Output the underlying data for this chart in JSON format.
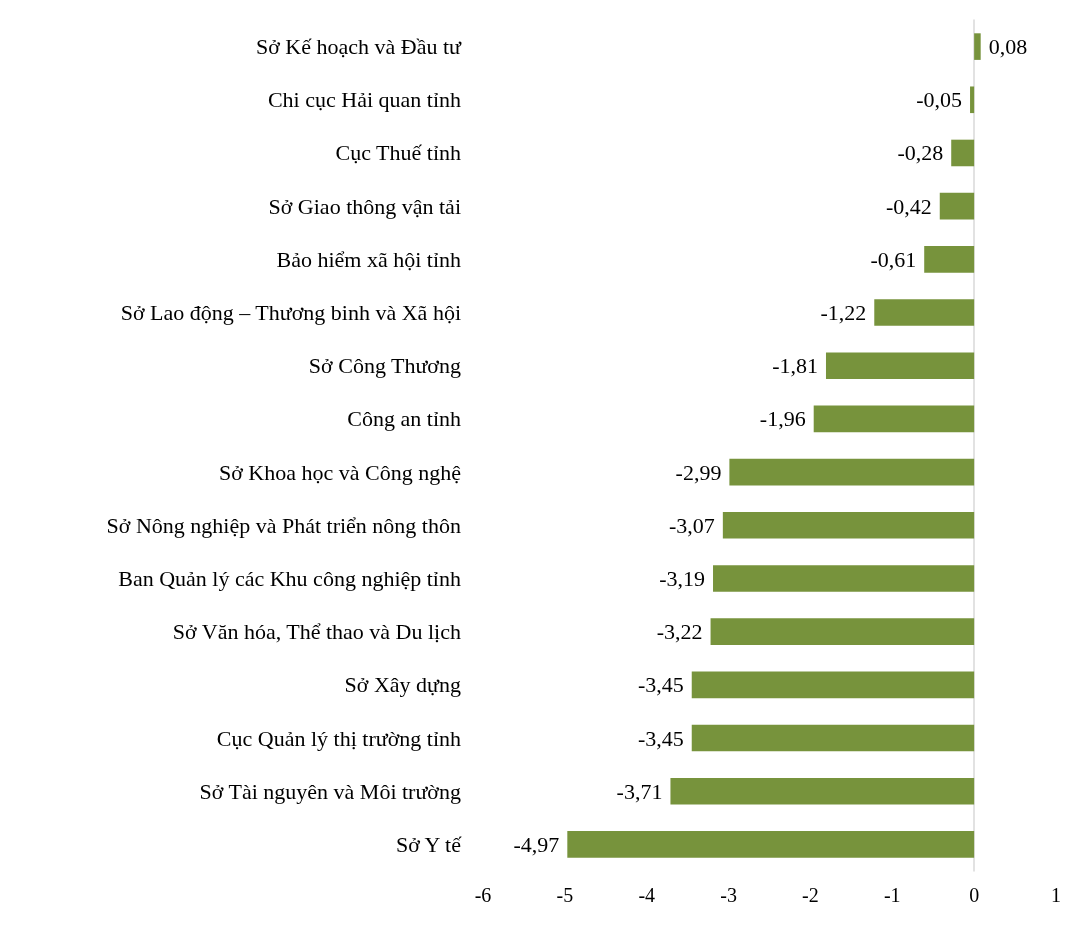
{
  "chart_data": {
    "type": "bar",
    "orientation": "horizontal",
    "categories": [
      "Sở Kế hoạch và Đầu tư",
      "Chi cục Hải quan tỉnh",
      "Cục Thuế tỉnh",
      "Sở Giao thông vận tải",
      "Bảo hiểm xã hội tỉnh",
      "Sở Lao động – Thương binh và Xã hội",
      "Sở Công Thương",
      "Công an tỉnh",
      "Sở Khoa học và Công nghệ",
      "Sở Nông nghiệp và Phát triển nông thôn",
      "Ban Quản lý các Khu công nghiệp tỉnh",
      "Sở Văn hóa, Thể thao và Du lịch",
      "Sở Xây dựng",
      "Cục Quản lý thị trường tỉnh",
      "Sở Tài nguyên và Môi trường",
      "Sở Y tế"
    ],
    "values": [
      0.08,
      -0.05,
      -0.28,
      -0.42,
      -0.61,
      -1.22,
      -1.81,
      -1.96,
      -2.99,
      -3.07,
      -3.19,
      -3.22,
      -3.45,
      -3.45,
      -3.71,
      -4.97
    ],
    "value_labels": [
      "0,08",
      "-0,05",
      "-0,28",
      "-0,42",
      "-0,61",
      "-1,22",
      "-1,81",
      "-1,96",
      "-2,99",
      "-3,07",
      "-3,19",
      "-3,22",
      "-3,45",
      "-3,45",
      "-3,71",
      "-4,97"
    ],
    "color": "#77933c",
    "xlim": [
      -6,
      1
    ],
    "xticks": [
      -6,
      -5,
      -4,
      -3,
      -2,
      -1,
      0,
      1
    ]
  }
}
